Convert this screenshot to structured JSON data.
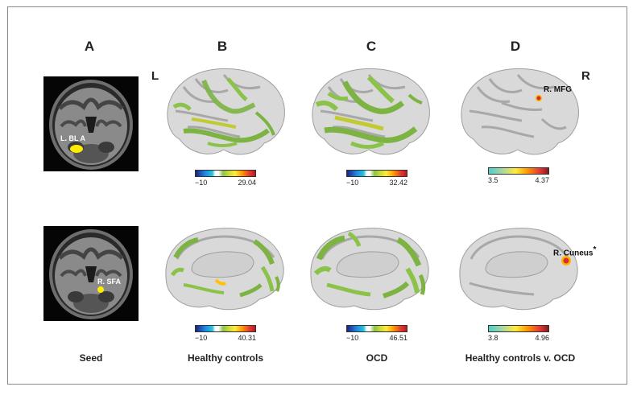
{
  "panels": {
    "a": "A",
    "b": "B",
    "c": "C",
    "d": "D"
  },
  "hemisphere": {
    "left": "L",
    "right": "R"
  },
  "seeds": {
    "top_label": "L. BL A",
    "bottom_label": "R. SFA"
  },
  "annotations": {
    "mfg": "R. MFG",
    "cuneus": "R. Cuneus",
    "cuneus_mark": "*"
  },
  "colorbars": {
    "b_top": {
      "min": "−10",
      "max": "29.04"
    },
    "c_top": {
      "min": "−10",
      "max": "32.42"
    },
    "d_top": {
      "min": "3.5",
      "max": "4.37"
    },
    "b_bottom": {
      "min": "−10",
      "max": "40.31"
    },
    "c_bottom": {
      "min": "−10",
      "max": "46.51"
    },
    "d_bottom": {
      "min": "3.8",
      "max": "4.96"
    }
  },
  "captions": {
    "a": "Seed",
    "b": "Healthy controls",
    "c": "OCD",
    "d": "Healthy controls v. OCD"
  },
  "colors": {
    "activation": "#7cb342",
    "activation_light": "#c0ca33",
    "cortex": "#d9d9d9",
    "seed": "#ffeb00",
    "peak": "#d32f2f"
  }
}
